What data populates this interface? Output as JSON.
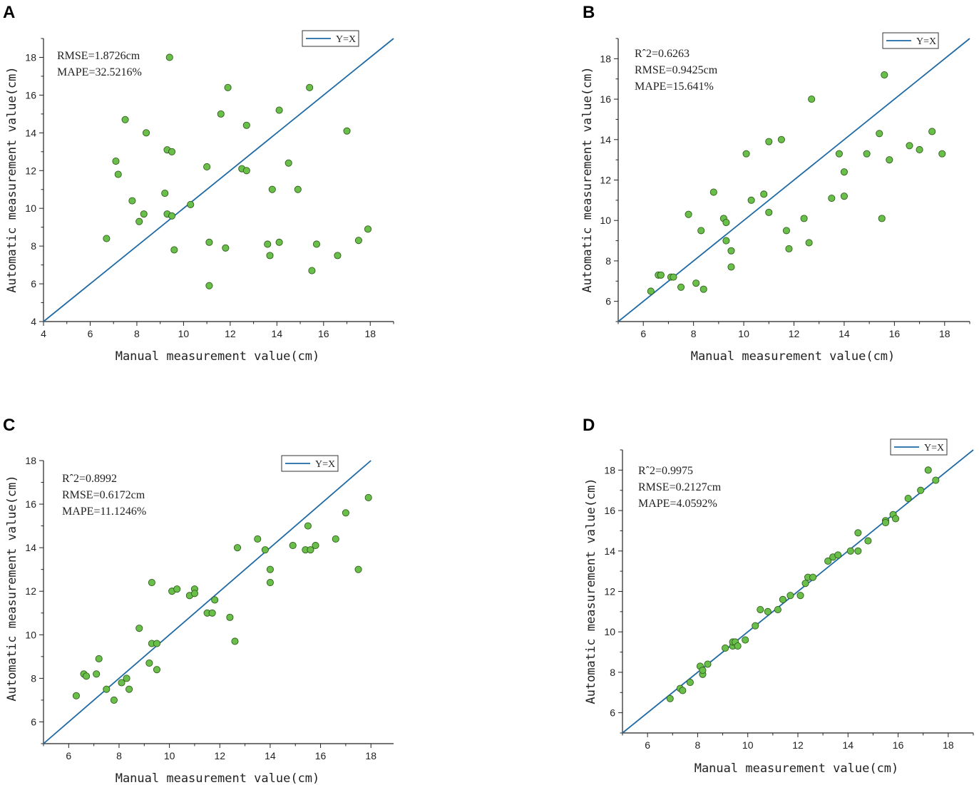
{
  "style": {
    "line_color": "#1f6aa5",
    "point_fill": "#6abf4b",
    "point_stroke": "#2f5f1c"
  },
  "chart_data": [
    {
      "panel": "A",
      "type": "scatter",
      "xlabel": "Manual measurement value(cm)",
      "ylabel": "Automatic measurement value(cm)",
      "xlim": [
        4,
        19
      ],
      "ylim": [
        4,
        19
      ],
      "xticks": [
        4,
        6,
        8,
        10,
        12,
        14,
        16,
        18
      ],
      "yticks": [
        4,
        6,
        8,
        10,
        12,
        14,
        16,
        18
      ],
      "legend": "Y=X",
      "legend_position": "top-right",
      "stats": [
        "RMSE=1.8726cm",
        "MAPE=32.5216%"
      ],
      "points": [
        [
          6.7,
          8.4
        ],
        [
          7.1,
          12.5
        ],
        [
          7.2,
          11.8
        ],
        [
          7.5,
          14.7
        ],
        [
          7.8,
          10.4
        ],
        [
          8.1,
          9.3
        ],
        [
          8.3,
          9.7
        ],
        [
          8.4,
          14.0
        ],
        [
          9.2,
          10.8
        ],
        [
          9.3,
          13.1
        ],
        [
          9.3,
          9.7
        ],
        [
          9.4,
          18.0
        ],
        [
          9.5,
          9.6
        ],
        [
          9.5,
          13.0
        ],
        [
          9.6,
          7.8
        ],
        [
          10.3,
          10.2
        ],
        [
          11.0,
          12.2
        ],
        [
          11.1,
          8.2
        ],
        [
          11.1,
          5.9
        ],
        [
          11.6,
          15.0
        ],
        [
          11.8,
          7.9
        ],
        [
          11.9,
          16.4
        ],
        [
          12.5,
          12.1
        ],
        [
          12.7,
          12.0
        ],
        [
          12.7,
          14.4
        ],
        [
          13.6,
          8.1
        ],
        [
          13.7,
          7.5
        ],
        [
          13.8,
          11.0
        ],
        [
          14.1,
          8.2
        ],
        [
          14.1,
          15.2
        ],
        [
          14.5,
          12.4
        ],
        [
          14.9,
          11.0
        ],
        [
          15.4,
          16.4
        ],
        [
          15.5,
          6.7
        ],
        [
          15.7,
          8.1
        ],
        [
          16.6,
          7.5
        ],
        [
          17.0,
          14.1
        ],
        [
          17.5,
          8.3
        ],
        [
          17.9,
          8.9
        ]
      ]
    },
    {
      "panel": "B",
      "type": "scatter",
      "xlabel": "Manual measurement value(cm)",
      "ylabel": "Automatic measurement value(cm)",
      "xlim": [
        5,
        19
      ],
      "ylim": [
        5,
        19
      ],
      "xticks": [
        6,
        8,
        10,
        12,
        14,
        16,
        18
      ],
      "yticks": [
        6,
        8,
        10,
        12,
        14,
        16,
        18
      ],
      "legend": "Y=X",
      "legend_position": "top-right",
      "stats": [
        "Rˆ2=0.6263",
        "RMSE=0.9425cm",
        "MAPE=15.641%"
      ],
      "points": [
        [
          6.3,
          6.5
        ],
        [
          6.6,
          7.3
        ],
        [
          6.7,
          7.3
        ],
        [
          7.1,
          7.2
        ],
        [
          7.2,
          7.2
        ],
        [
          7.5,
          6.7
        ],
        [
          7.8,
          10.3
        ],
        [
          8.1,
          6.9
        ],
        [
          8.3,
          9.5
        ],
        [
          8.4,
          6.6
        ],
        [
          8.8,
          11.4
        ],
        [
          9.2,
          10.1
        ],
        [
          9.3,
          9.9
        ],
        [
          9.3,
          9.0
        ],
        [
          9.5,
          8.5
        ],
        [
          9.5,
          7.7
        ],
        [
          10.1,
          13.3
        ],
        [
          10.3,
          11.0
        ],
        [
          10.8,
          11.3
        ],
        [
          11.0,
          13.9
        ],
        [
          11.0,
          10.4
        ],
        [
          11.5,
          14.0
        ],
        [
          11.7,
          9.5
        ],
        [
          11.8,
          8.6
        ],
        [
          12.4,
          10.1
        ],
        [
          12.6,
          8.9
        ],
        [
          12.7,
          16.0
        ],
        [
          13.5,
          11.1
        ],
        [
          13.8,
          13.3
        ],
        [
          14.0,
          12.4
        ],
        [
          14.0,
          11.2
        ],
        [
          14.9,
          13.3
        ],
        [
          15.4,
          14.3
        ],
        [
          15.5,
          10.1
        ],
        [
          15.6,
          17.2
        ],
        [
          15.8,
          13.0
        ],
        [
          16.6,
          13.7
        ],
        [
          17.0,
          13.5
        ],
        [
          17.5,
          14.4
        ],
        [
          17.9,
          13.3
        ]
      ]
    },
    {
      "panel": "C",
      "type": "scatter",
      "xlabel": "Manual measurement value(cm)",
      "ylabel": "Automatic measurement value(cm)",
      "xlim": [
        5,
        18.9
      ],
      "ylim": [
        5,
        18
      ],
      "xticks": [
        6,
        8,
        10,
        12,
        14,
        16,
        18
      ],
      "yticks": [
        6,
        8,
        10,
        12,
        14,
        16,
        18
      ],
      "legend": "Y=X",
      "legend_position": "top-right",
      "stats": [
        "Rˆ2=0.8992",
        "RMSE=0.6172cm",
        "MAPE=11.1246%"
      ],
      "points": [
        [
          6.3,
          7.2
        ],
        [
          6.6,
          8.2
        ],
        [
          6.7,
          8.1
        ],
        [
          7.1,
          8.2
        ],
        [
          7.2,
          8.9
        ],
        [
          7.5,
          7.5
        ],
        [
          7.8,
          7.0
        ],
        [
          8.1,
          7.8
        ],
        [
          8.3,
          8.0
        ],
        [
          8.4,
          7.5
        ],
        [
          8.8,
          10.3
        ],
        [
          9.2,
          8.7
        ],
        [
          9.3,
          12.4
        ],
        [
          9.3,
          9.6
        ],
        [
          9.5,
          8.4
        ],
        [
          9.5,
          9.6
        ],
        [
          10.1,
          12.0
        ],
        [
          10.3,
          12.1
        ],
        [
          10.8,
          11.8
        ],
        [
          11.0,
          12.1
        ],
        [
          11.0,
          11.9
        ],
        [
          11.5,
          11.0
        ],
        [
          11.7,
          11.0
        ],
        [
          11.8,
          11.6
        ],
        [
          12.4,
          10.8
        ],
        [
          12.6,
          9.7
        ],
        [
          12.7,
          14.0
        ],
        [
          13.5,
          14.4
        ],
        [
          13.8,
          13.9
        ],
        [
          14.0,
          13.0
        ],
        [
          14.0,
          12.4
        ],
        [
          14.9,
          14.1
        ],
        [
          15.4,
          13.9
        ],
        [
          15.5,
          15.0
        ],
        [
          15.6,
          13.9
        ],
        [
          15.8,
          14.1
        ],
        [
          16.6,
          14.4
        ],
        [
          17.0,
          15.6
        ],
        [
          17.5,
          13.0
        ],
        [
          17.9,
          16.3
        ]
      ]
    },
    {
      "panel": "D",
      "type": "scatter",
      "xlabel": "Manual measurement value(cm)",
      "ylabel": "Automatic measurement value(cm)",
      "xlim": [
        5,
        19
      ],
      "ylim": [
        5,
        19
      ],
      "xticks": [
        6,
        8,
        10,
        12,
        14,
        16,
        18
      ],
      "yticks": [
        6,
        8,
        10,
        12,
        14,
        16,
        18
      ],
      "legend": "Y=X",
      "legend_position": "top-right",
      "stats": [
        "Rˆ2=0.9975",
        "RMSE=0.2127cm",
        "MAPE=4.0592%"
      ],
      "points": [
        [
          6.9,
          6.7
        ],
        [
          7.3,
          7.2
        ],
        [
          7.4,
          7.1
        ],
        [
          7.7,
          7.5
        ],
        [
          8.1,
          8.3
        ],
        [
          8.2,
          7.9
        ],
        [
          8.2,
          8.1
        ],
        [
          8.4,
          8.4
        ],
        [
          9.1,
          9.2
        ],
        [
          9.4,
          9.3
        ],
        [
          9.4,
          9.5
        ],
        [
          9.5,
          9.5
        ],
        [
          9.6,
          9.3
        ],
        [
          9.9,
          9.6
        ],
        [
          10.3,
          10.3
        ],
        [
          10.5,
          11.1
        ],
        [
          10.8,
          11.0
        ],
        [
          11.2,
          11.1
        ],
        [
          11.4,
          11.6
        ],
        [
          11.7,
          11.8
        ],
        [
          12.1,
          11.8
        ],
        [
          12.3,
          12.4
        ],
        [
          12.4,
          12.7
        ],
        [
          12.6,
          12.7
        ],
        [
          13.2,
          13.5
        ],
        [
          13.4,
          13.7
        ],
        [
          13.6,
          13.8
        ],
        [
          14.1,
          14.0
        ],
        [
          14.4,
          14.0
        ],
        [
          14.4,
          14.9
        ],
        [
          14.8,
          14.5
        ],
        [
          15.5,
          15.5
        ],
        [
          15.5,
          15.4
        ],
        [
          15.8,
          15.8
        ],
        [
          15.9,
          15.6
        ],
        [
          16.4,
          16.6
        ],
        [
          16.9,
          17.0
        ],
        [
          17.2,
          18.0
        ],
        [
          17.5,
          17.5
        ]
      ]
    }
  ]
}
